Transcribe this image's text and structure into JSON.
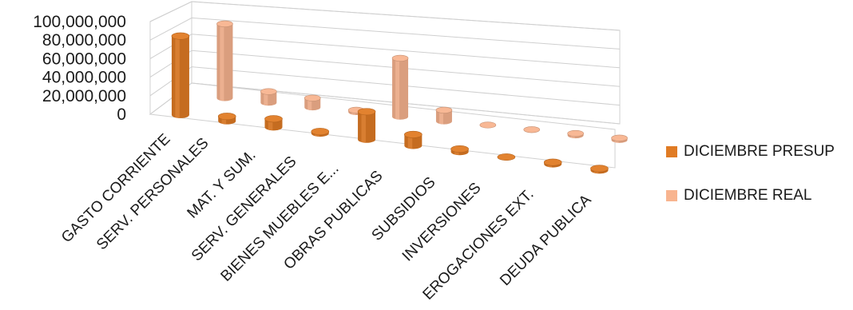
{
  "chart_data": {
    "type": "bar",
    "style": "3d-cylinder",
    "categories": [
      "GASTO CORRIENTE",
      "SERV. PERSONALES",
      "MAT. Y SUM.",
      "SERV. GENERALES",
      "BIENES MUEBLES E...",
      "OBRAS PUBLICAS",
      "SUBSIDIOS",
      "INVERSIONES",
      "EROGACIONES EXT.",
      "DEUDA PUBLICA"
    ],
    "series": [
      {
        "name": "DICIEMBRE PRESUP",
        "color": "#e07b24",
        "values": [
          85000000,
          5000000,
          9000000,
          2000000,
          30000000,
          12000000,
          3000000,
          1000000,
          2000000,
          2000000
        ]
      },
      {
        "name": "DICIEMBRE REAL",
        "color": "#f8b48f",
        "values": [
          80000000,
          12000000,
          10000000,
          2000000,
          63000000,
          12000000,
          1000000,
          1000000,
          2000000,
          2000000
        ]
      }
    ],
    "yticks": [
      "100,000,000",
      "80,000,000",
      "60,000,000",
      "40,000,000",
      "20,000,000",
      "0"
    ],
    "ylim": [
      0,
      100000000
    ],
    "legend_position": "right",
    "grid": true
  }
}
